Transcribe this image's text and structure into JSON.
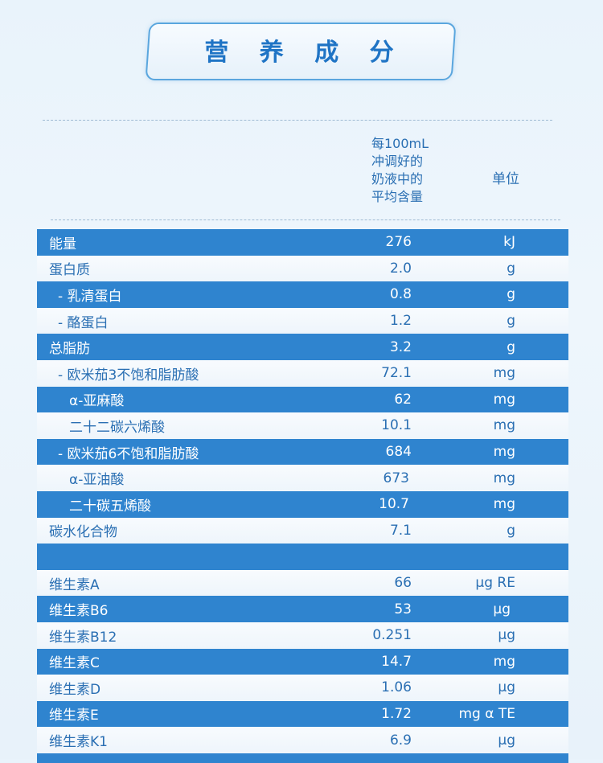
{
  "title": "营 养 成 分",
  "header": {
    "amount_lines": [
      "每100mL",
      "冲调好的",
      "奶液中的",
      "平均含量"
    ],
    "unit": "单位"
  },
  "rows": [
    {
      "name": "能量",
      "value": "276",
      "unit": "kJ"
    },
    {
      "name": "蛋白质",
      "value": "2.0",
      "unit": "g"
    },
    {
      "name": "- 乳清蛋白",
      "value": "0.8",
      "unit": "g"
    },
    {
      "name": "- 酪蛋白",
      "value": "1.2",
      "unit": "g"
    },
    {
      "name": "总脂肪",
      "value": "3.2",
      "unit": "g"
    },
    {
      "name": "- 欧米茄3不饱和脂肪酸",
      "value": "72.1",
      "unit": "mg"
    },
    {
      "name": "α-亚麻酸",
      "value": "62",
      "unit": "mg"
    },
    {
      "name": "二十二碳六烯酸",
      "value": "10.1",
      "unit": "mg"
    },
    {
      "name": "- 欧米茄6不饱和脂肪酸",
      "value": "684",
      "unit": "mg"
    },
    {
      "name": "α-亚油酸",
      "value": "673",
      "unit": "mg"
    },
    {
      "name": "二十碳五烯酸",
      "value": "10.7",
      "unit": "mg"
    },
    {
      "name": "碳水化合物",
      "value": "7.1",
      "unit": "g"
    },
    {
      "name": "",
      "value": "",
      "unit": ""
    },
    {
      "name": "维生素A",
      "value": "66",
      "unit": "μg RE"
    },
    {
      "name": "维生素B6",
      "value": "53",
      "unit": "μg"
    },
    {
      "name": "维生素B12",
      "value": "0.251",
      "unit": "μg"
    },
    {
      "name": "维生素C",
      "value": "14.7",
      "unit": "mg"
    },
    {
      "name": "维生素D",
      "value": "1.06",
      "unit": "μg"
    },
    {
      "name": "维生素E",
      "value": "1.72",
      "unit": "mg α TE"
    },
    {
      "name": "维生素K1",
      "value": "6.9",
      "unit": "μg"
    }
  ]
}
